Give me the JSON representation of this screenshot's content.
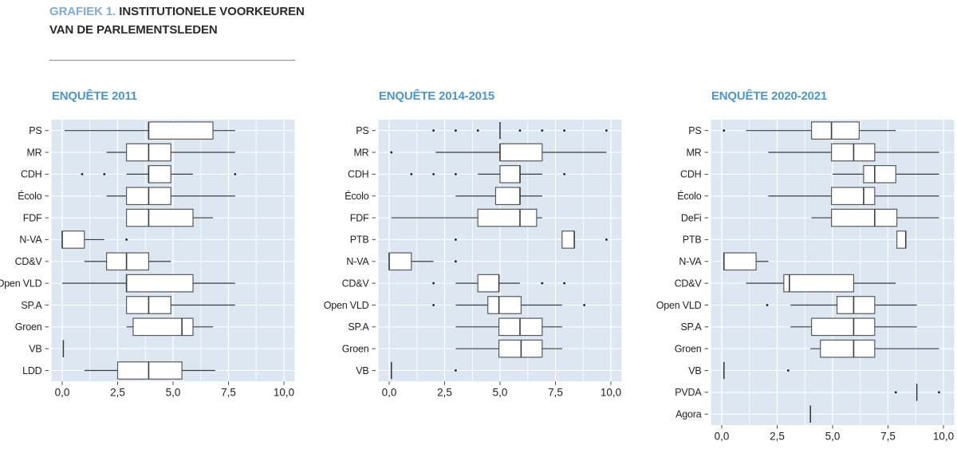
{
  "header": {
    "label": "GRAFIEK 1.",
    "title_line1": "INSTITUTIONELE VOORKEUREN",
    "title_line2": "VAN DE PARLEMENTSLEDEN"
  },
  "colors": {
    "accent_blue": "#4e95cb",
    "title_blue": "#84aad3",
    "text_dark": "#231f20",
    "panel_bg": "#dde7f1",
    "grid": "#ffffff",
    "box_fill": "#ffffff",
    "box_stroke": "#59595c",
    "line": "#3d3d3f",
    "outlier": "#1f1f1f",
    "tick": "#4a4a4a"
  },
  "chart_data": [
    {
      "type": "boxplot",
      "title": "ENQUÊTE 2011",
      "xlim": [
        0,
        10
      ],
      "x_ticks": [
        0,
        2.5,
        5,
        7.5,
        10
      ],
      "x_tick_labels": [
        "0,0",
        "2,5",
        "5,0",
        "7,5",
        "10,0"
      ],
      "rows": [
        {
          "label": "PS",
          "whisker_low": 0.1,
          "q1": 3.9,
          "median": 3.9,
          "q3": 6.8,
          "whisker_high": 7.8,
          "outliers": []
        },
        {
          "label": "MR",
          "whisker_low": 2.0,
          "q1": 2.9,
          "median": 3.9,
          "q3": 4.9,
          "whisker_high": 7.8,
          "outliers": []
        },
        {
          "label": "CDH",
          "whisker_low": 2.9,
          "q1": 3.9,
          "median": 3.9,
          "q3": 4.9,
          "whisker_high": 5.9,
          "outliers": [
            0.9,
            1.9,
            7.8
          ]
        },
        {
          "label": "Écolo",
          "whisker_low": 2.0,
          "q1": 2.9,
          "median": 3.9,
          "q3": 4.9,
          "whisker_high": 7.8,
          "outliers": []
        },
        {
          "label": "FDF",
          "whisker_low": 2.9,
          "q1": 2.9,
          "median": 3.9,
          "q3": 5.9,
          "whisker_high": 6.8,
          "outliers": []
        },
        {
          "label": "N-VA",
          "whisker_low": 0.0,
          "q1": 0.0,
          "median": 0.0,
          "q3": 1.0,
          "whisker_high": 1.9,
          "outliers": [
            2.9
          ]
        },
        {
          "label": "CD&V",
          "whisker_low": 1.0,
          "q1": 2.0,
          "median": 2.9,
          "q3": 3.9,
          "whisker_high": 4.9,
          "outliers": []
        },
        {
          "label": "Open VLD",
          "whisker_low": 0.0,
          "q1": 2.9,
          "median": 2.9,
          "q3": 5.9,
          "whisker_high": 7.8,
          "outliers": []
        },
        {
          "label": "SP.A",
          "whisker_low": 2.9,
          "q1": 2.9,
          "median": 3.9,
          "q3": 4.9,
          "whisker_high": 7.8,
          "outliers": []
        },
        {
          "label": "Groen",
          "whisker_low": 2.9,
          "q1": 3.2,
          "median": 5.4,
          "q3": 5.9,
          "whisker_high": 6.8,
          "outliers": []
        },
        {
          "label": "VB",
          "whisker_low": 0.05,
          "q1": 0.05,
          "median": 0.05,
          "q3": 0.05,
          "whisker_high": 0.05,
          "outliers": []
        },
        {
          "label": "LDD",
          "whisker_low": 1.0,
          "q1": 2.5,
          "median": 3.9,
          "q3": 5.4,
          "whisker_high": 6.9,
          "outliers": []
        }
      ]
    },
    {
      "type": "boxplot",
      "title": "ENQUÊTE 2014-2015",
      "xlim": [
        0,
        10
      ],
      "x_ticks": [
        0,
        2.5,
        5,
        7.5,
        10
      ],
      "x_tick_labels": [
        "0,0",
        "2,5",
        "5,0",
        "7,5",
        "10,0"
      ],
      "rows": [
        {
          "label": "PS",
          "whisker_low": 5.0,
          "q1": 5.0,
          "median": 5.0,
          "q3": 5.0,
          "whisker_high": 5.0,
          "outliers": [
            2.0,
            3.0,
            4.0,
            5.9,
            6.9,
            7.9,
            9.8
          ]
        },
        {
          "label": "MR",
          "whisker_low": 2.1,
          "q1": 5.0,
          "median": 5.0,
          "q3": 6.9,
          "whisker_high": 9.8,
          "outliers": [
            0.1
          ]
        },
        {
          "label": "CDH",
          "whisker_low": 4.0,
          "q1": 5.0,
          "median": 5.9,
          "q3": 5.9,
          "whisker_high": 6.9,
          "outliers": [
            1.0,
            2.0,
            3.0,
            7.9
          ]
        },
        {
          "label": "Écolo",
          "whisker_low": 3.0,
          "q1": 4.8,
          "median": 5.9,
          "q3": 5.9,
          "whisker_high": 6.9,
          "outliers": []
        },
        {
          "label": "FDF",
          "whisker_low": 0.1,
          "q1": 4.0,
          "median": 5.9,
          "q3": 6.65,
          "whisker_high": 6.9,
          "outliers": []
        },
        {
          "label": "PTB",
          "whisker_low": 7.8,
          "q1": 7.8,
          "median": 8.35,
          "q3": 8.35,
          "whisker_high": 8.35,
          "outliers": [
            3.0,
            9.8
          ]
        },
        {
          "label": "N-VA",
          "whisker_low": 0.0,
          "q1": 0.0,
          "median": 0.0,
          "q3": 1.0,
          "whisker_high": 2.0,
          "outliers": [
            3.0
          ]
        },
        {
          "label": "CD&V",
          "whisker_low": 3.0,
          "q1": 4.0,
          "median": 4.95,
          "q3": 4.95,
          "whisker_high": 5.9,
          "outliers": [
            2.0,
            6.9,
            7.9
          ]
        },
        {
          "label": "Open VLD",
          "whisker_low": 3.0,
          "q1": 4.45,
          "median": 4.95,
          "q3": 5.95,
          "whisker_high": 7.8,
          "outliers": [
            2.0,
            8.8
          ]
        },
        {
          "label": "SP.A",
          "whisker_low": 3.0,
          "q1": 4.95,
          "median": 5.9,
          "q3": 6.9,
          "whisker_high": 7.8,
          "outliers": []
        },
        {
          "label": "Groen",
          "whisker_low": 3.0,
          "q1": 4.95,
          "median": 5.95,
          "q3": 6.9,
          "whisker_high": 7.8,
          "outliers": []
        },
        {
          "label": "VB",
          "whisker_low": 0.1,
          "q1": 0.1,
          "median": 0.1,
          "q3": 0.1,
          "whisker_high": 0.1,
          "outliers": [
            3.0
          ]
        }
      ]
    },
    {
      "type": "boxplot",
      "title": "ENQUÊTE 2020-2021",
      "xlim": [
        0,
        10
      ],
      "x_ticks": [
        0,
        2.5,
        5,
        7.5,
        10
      ],
      "x_tick_labels": [
        "0,0",
        "2,5",
        "5,0",
        "7,5",
        "10,0"
      ],
      "rows": [
        {
          "label": "PS",
          "whisker_low": 1.1,
          "q1": 4.05,
          "median": 4.95,
          "q3": 6.2,
          "whisker_high": 7.85,
          "outliers": [
            0.1
          ]
        },
        {
          "label": "MR",
          "whisker_low": 2.1,
          "q1": 4.95,
          "median": 5.95,
          "q3": 6.9,
          "whisker_high": 9.8,
          "outliers": []
        },
        {
          "label": "CDH",
          "whisker_low": 5.0,
          "q1": 6.4,
          "median": 6.9,
          "q3": 7.85,
          "whisker_high": 9.8,
          "outliers": []
        },
        {
          "label": "Écolo",
          "whisker_low": 2.1,
          "q1": 4.95,
          "median": 6.4,
          "q3": 6.9,
          "whisker_high": 9.8,
          "outliers": []
        },
        {
          "label": "DeFi",
          "whisker_low": 4.05,
          "q1": 4.95,
          "median": 6.9,
          "q3": 7.9,
          "whisker_high": 9.8,
          "outliers": []
        },
        {
          "label": "PTB",
          "whisker_low": 7.9,
          "q1": 7.9,
          "median": 8.3,
          "q3": 8.3,
          "whisker_high": 8.3,
          "outliers": []
        },
        {
          "label": "N-VA",
          "whisker_low": 0.1,
          "q1": 0.1,
          "median": 0.1,
          "q3": 1.55,
          "whisker_high": 2.1,
          "outliers": []
        },
        {
          "label": "CD&V",
          "whisker_low": 1.1,
          "q1": 2.8,
          "median": 3.05,
          "q3": 5.95,
          "whisker_high": 7.85,
          "outliers": []
        },
        {
          "label": "Open VLD",
          "whisker_low": 3.1,
          "q1": 5.2,
          "median": 5.95,
          "q3": 6.9,
          "whisker_high": 8.8,
          "outliers": [
            2.05
          ]
        },
        {
          "label": "SP.A",
          "whisker_low": 3.1,
          "q1": 4.05,
          "median": 5.95,
          "q3": 6.9,
          "whisker_high": 8.8,
          "outliers": []
        },
        {
          "label": "Groen",
          "whisker_low": 4.0,
          "q1": 4.45,
          "median": 5.95,
          "q3": 6.9,
          "whisker_high": 9.8,
          "outliers": []
        },
        {
          "label": "VB",
          "whisker_low": 0.1,
          "q1": 0.1,
          "median": 0.1,
          "q3": 0.1,
          "whisker_high": 0.1,
          "outliers": [
            3.0
          ]
        },
        {
          "label": "PVDA",
          "whisker_low": 8.8,
          "q1": 8.8,
          "median": 8.8,
          "q3": 8.8,
          "whisker_high": 8.8,
          "outliers": [
            7.85,
            9.8
          ]
        },
        {
          "label": "Agora",
          "whisker_low": 4.0,
          "q1": 4.0,
          "median": 4.0,
          "q3": 4.0,
          "whisker_high": 4.0,
          "outliers": []
        }
      ]
    }
  ]
}
